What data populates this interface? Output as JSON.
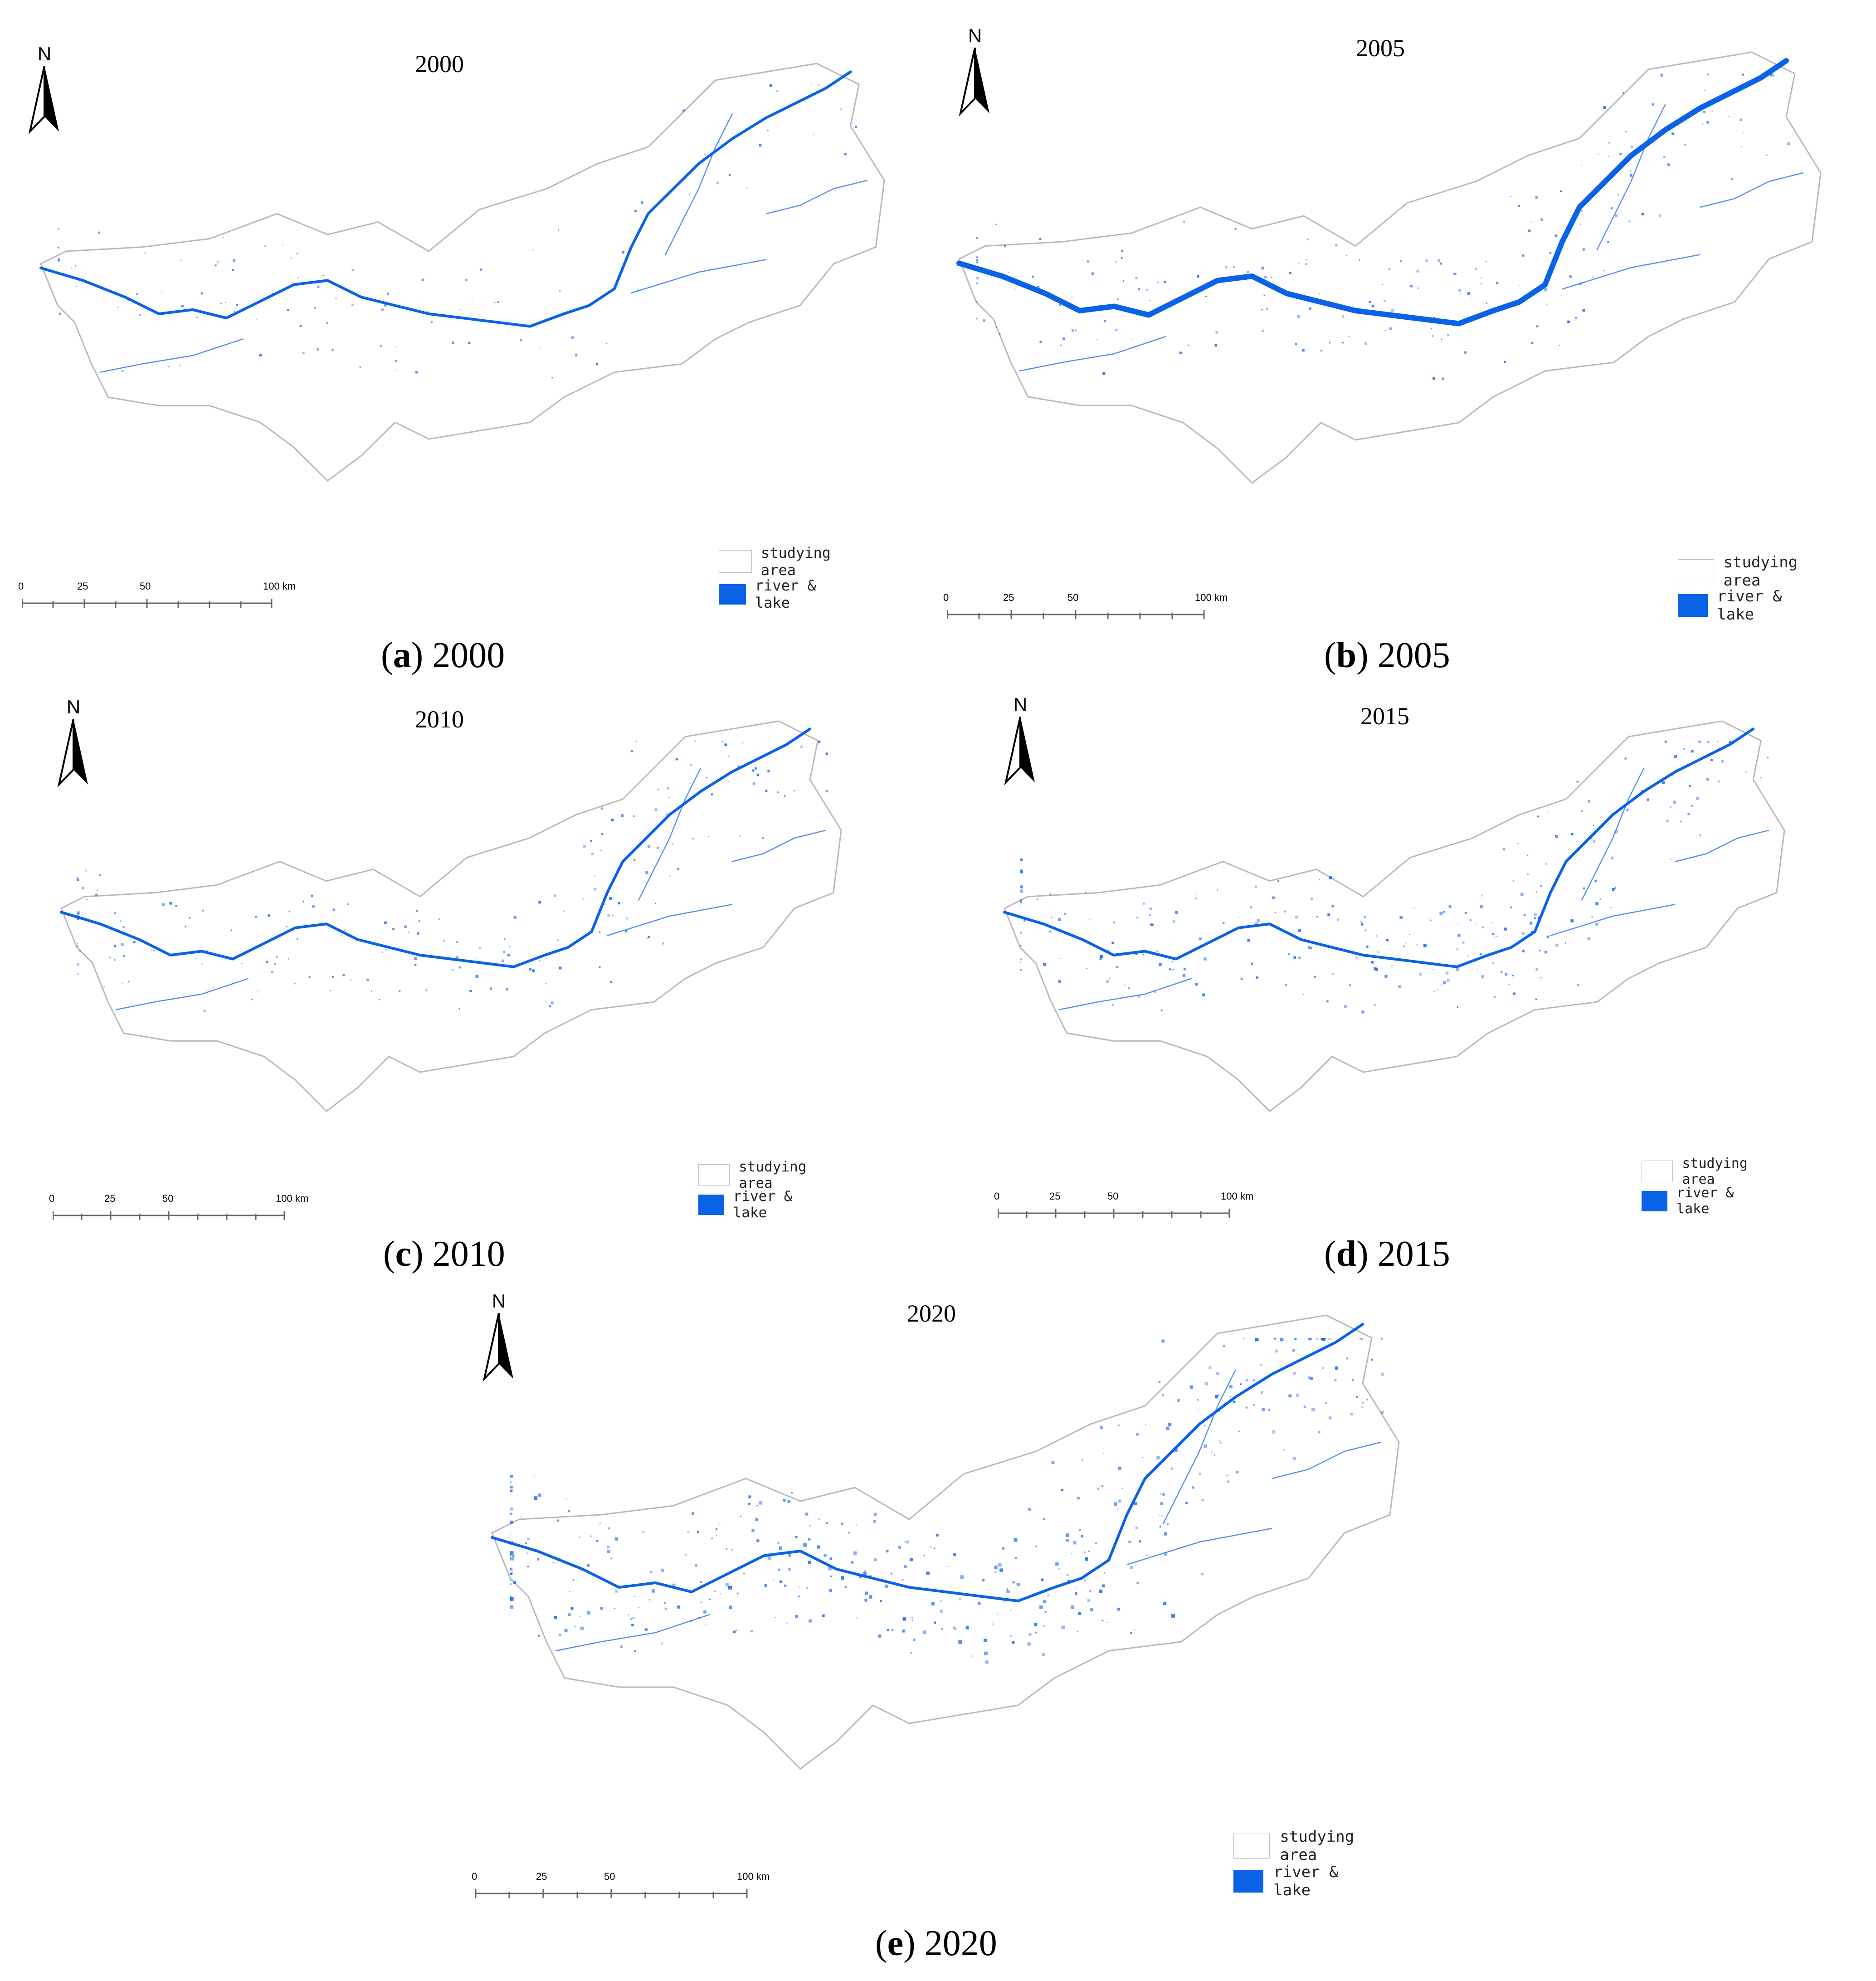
{
  "legend": {
    "area_label": "studying area",
    "water_label": "river & lake"
  },
  "north_label": "N",
  "colors": {
    "water": "#0a62e6",
    "boundary": "#b8b8b8"
  },
  "scale": {
    "ticks": [
      "0",
      "25",
      "50",
      "100 km"
    ]
  },
  "panels": [
    {
      "id": "a",
      "year": "2000",
      "caption_letter": "a",
      "caption_rest": ") 2000",
      "density": 0.25
    },
    {
      "id": "b",
      "year": "2005",
      "caption_letter": "b",
      "caption_rest": ") 2005",
      "density": 0.45
    },
    {
      "id": "c",
      "year": "2010",
      "caption_letter": "c",
      "caption_rest": ") 2010",
      "density": 0.45
    },
    {
      "id": "d",
      "year": "2015",
      "caption_letter": "d",
      "caption_rest": ") 2015",
      "density": 0.6
    },
    {
      "id": "e",
      "year": "2020",
      "caption_letter": "e",
      "caption_rest": ") 2020",
      "density": 1.0
    }
  ]
}
